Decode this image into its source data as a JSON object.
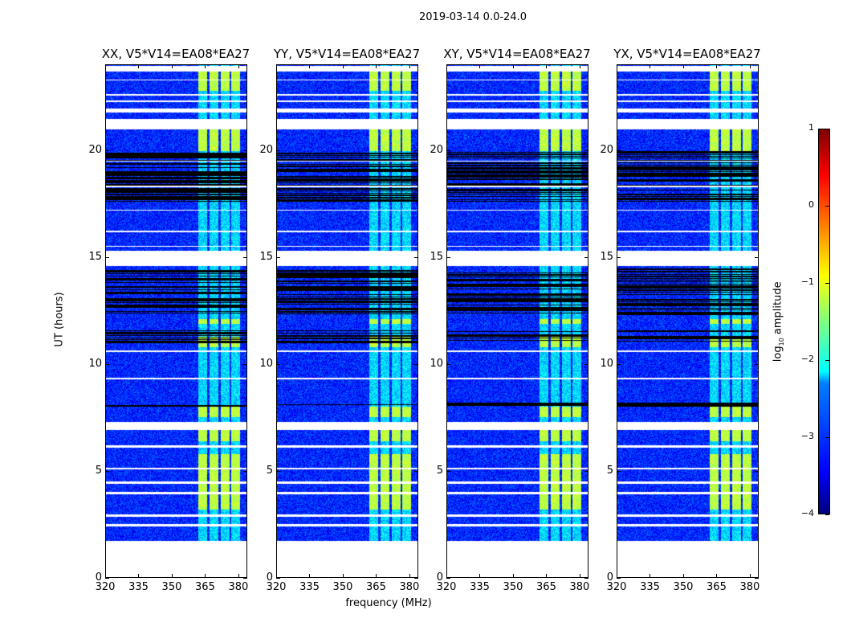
{
  "chart_data": {
    "type": "heatmap",
    "title": "2019-03-14 0.0-24.0",
    "xlabel": "frequency (MHz)",
    "ylabel": "UT (hours)",
    "xlim": [
      320,
      384
    ],
    "ylim": [
      0,
      24
    ],
    "xticks": [
      320,
      335,
      350,
      365,
      380
    ],
    "yticks": [
      0,
      5,
      10,
      15,
      20
    ],
    "panels": [
      {
        "title": "XX, V5*V14=EA08*EA27"
      },
      {
        "title": "YY, V5*V14=EA08*EA27"
      },
      {
        "title": "XY, V5*V14=EA08*EA27"
      },
      {
        "title": "YX, V5*V14=EA08*EA27"
      }
    ],
    "colorbar": {
      "label": "log10 amplitude",
      "label_main": "log",
      "label_sub": "10",
      "label_tail": " amplitude",
      "ticks": [
        1,
        0,
        -1,
        -2,
        -3,
        -4
      ],
      "range": [
        -4,
        1
      ],
      "colormap": "jet"
    },
    "background_log_amp": -3.2,
    "bright_band_MHz": [
      362,
      381
    ],
    "flagged_time_ranges_h": [
      [
        0,
        1.7
      ],
      [
        2.4,
        2.5
      ],
      [
        2.85,
        2.95
      ],
      [
        3.9,
        4.0
      ],
      [
        4.4,
        4.5
      ],
      [
        5.05,
        5.15
      ],
      [
        6.1,
        6.2
      ],
      [
        6.9,
        7.3
      ],
      [
        9.3,
        9.35
      ],
      [
        10.55,
        10.65
      ],
      [
        14.6,
        15.3
      ],
      [
        15.5,
        15.55
      ],
      [
        16.2,
        16.25
      ],
      [
        17.2,
        17.25
      ],
      [
        18.3,
        18.35
      ],
      [
        19.5,
        19.55
      ],
      [
        21.0,
        21.5
      ],
      [
        21.8,
        22.0
      ],
      [
        22.3,
        22.35
      ],
      [
        22.6,
        22.65
      ],
      [
        23.3,
        23.35
      ],
      [
        23.7,
        24
      ]
    ],
    "missing_time_ranges_h": [
      [
        7.0,
        7.1
      ],
      [
        8.0,
        8.2
      ],
      [
        11.0,
        11.6
      ],
      [
        12.3,
        14.5
      ],
      [
        17.6,
        20.0
      ]
    ],
    "bright_time_ranges_h": [
      [
        3.2,
        5.8
      ],
      [
        6.4,
        7.0
      ],
      [
        7.5,
        8.0
      ],
      [
        10.8,
        11.3
      ],
      [
        11.9,
        12.1
      ],
      [
        20.0,
        21.0
      ],
      [
        22.8,
        23.8
      ]
    ]
  }
}
